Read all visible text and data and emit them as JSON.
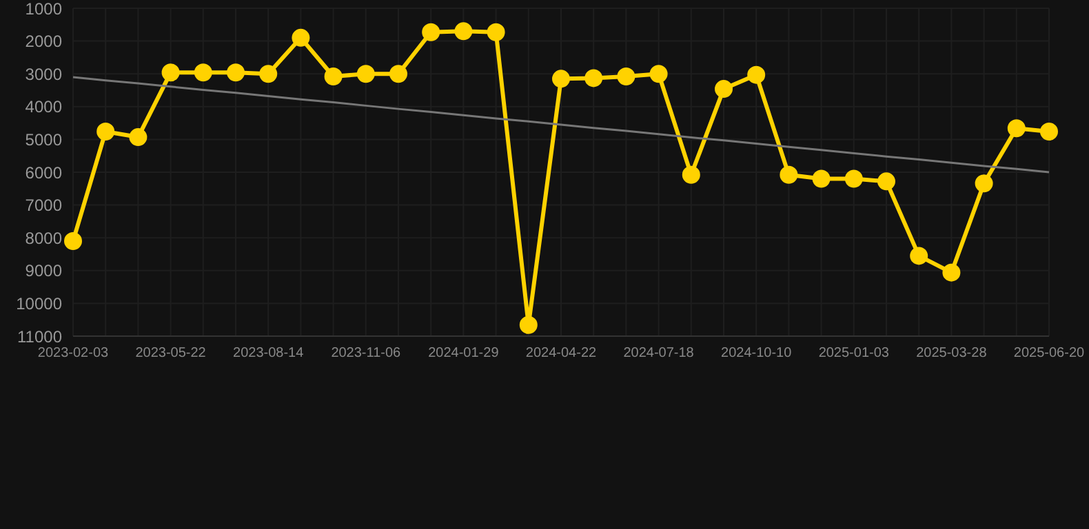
{
  "chart_data": {
    "type": "line",
    "categories": [
      "2023-02-03",
      null,
      null,
      "2023-05-22",
      null,
      null,
      "2023-08-14",
      null,
      null,
      "2023-11-06",
      null,
      null,
      "2024-01-29",
      null,
      null,
      "2024-04-22",
      null,
      null,
      "2024-07-18",
      null,
      null,
      "2024-10-10",
      null,
      null,
      "2025-01-03",
      null,
      null,
      "2025-03-28",
      null,
      null,
      "2025-06-20"
    ],
    "series": [
      {
        "color": "#ffd200",
        "marker": "circle",
        "values": [
          8100,
          4760,
          4930,
          2960,
          2960,
          2960,
          3000,
          1900,
          3080,
          3000,
          3000,
          1730,
          1700,
          1730,
          10660,
          3150,
          3130,
          3080,
          3000,
          6080,
          3460,
          3030,
          6080,
          6200,
          6200,
          6280,
          8550,
          9060,
          6340,
          4660,
          4760
        ]
      },
      {
        "type": "line",
        "color": "#777777",
        "marker": "none",
        "values": [
          3100,
          3200,
          3290,
          3390,
          3490,
          3580,
          3680,
          3780,
          3870,
          3970,
          4070,
          4160,
          4260,
          4360,
          4450,
          4550,
          4650,
          4740,
          4840,
          4940,
          5030,
          5130,
          5230,
          5320,
          5420,
          5520,
          5610,
          5710,
          5810,
          5900,
          6000
        ]
      }
    ],
    "ylim": [
      11000,
      1000
    ],
    "yticks": [
      1000,
      2000,
      3000,
      4000,
      5000,
      6000,
      7000,
      8000,
      9000,
      10000,
      11000
    ],
    "grid": true,
    "legend": false
  }
}
